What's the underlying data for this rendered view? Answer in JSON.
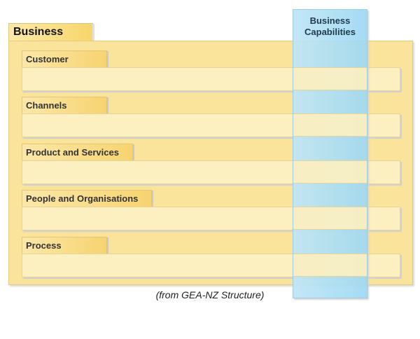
{
  "business": {
    "title": "Business"
  },
  "capabilities": {
    "line1": "Business",
    "line2": "Capabilities"
  },
  "sections": [
    {
      "label": "Customer"
    },
    {
      "label": "Channels"
    },
    {
      "label": "Product and Services"
    },
    {
      "label": "People and Organisations"
    },
    {
      "label": "Process"
    }
  ],
  "caption": "(from GEA-NZ Structure)",
  "colors": {
    "business_fill": "#fae39a",
    "bar_fill": "#fcefc0",
    "capabilities_fill": "#a8dcf4"
  }
}
